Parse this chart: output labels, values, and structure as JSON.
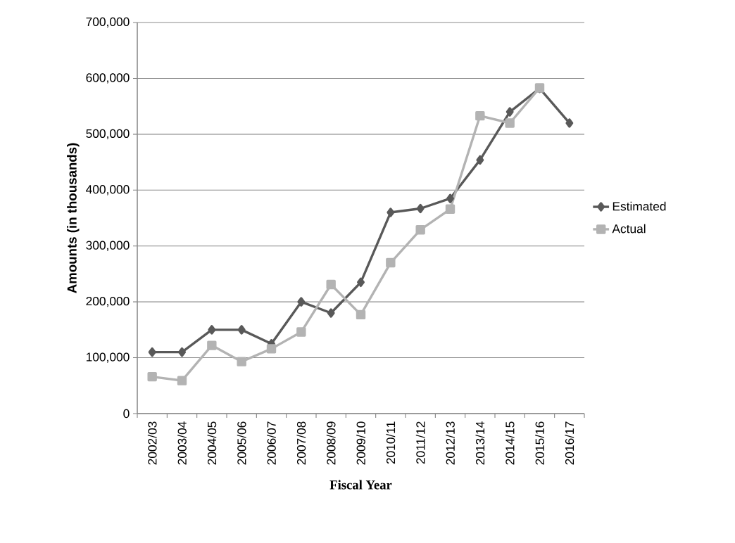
{
  "chart_data": {
    "type": "line",
    "xlabel": "Fiscal Year",
    "ylabel": "Amounts (in thousands)",
    "categories": [
      "2002/03",
      "2003/04",
      "2004/05",
      "2005/06",
      "2006/07",
      "2007/08",
      "2008/09",
      "2009/10",
      "2010/11",
      "2011/12",
      "2012/13",
      "2013/14",
      "2014/15",
      "2015/16",
      "2016/17"
    ],
    "series": [
      {
        "name": "Estimated",
        "color": "#595959",
        "marker": "diamond",
        "values": [
          110000,
          110000,
          150000,
          150000,
          125000,
          200000,
          180000,
          235000,
          360000,
          367000,
          385000,
          454000,
          540000,
          582000,
          520000
        ]
      },
      {
        "name": "Actual",
        "color": "#b3b3b3",
        "marker": "square",
        "values": [
          66000,
          59000,
          122000,
          93000,
          116000,
          146000,
          231000,
          177000,
          270000,
          329000,
          366000,
          533000,
          520000,
          583000,
          null
        ]
      }
    ],
    "ylim": [
      0,
      700000
    ],
    "yticks": [
      0,
      {
        "value": 100000,
        "label": "100,000"
      },
      {
        "value": 200000,
        "label": "200,000"
      },
      {
        "value": 300000,
        "label": "300,000"
      },
      {
        "value": 400000,
        "label": "400,000"
      },
      {
        "value": 500000,
        "label": "500,000"
      },
      {
        "value": 600000,
        "label": "600,000"
      },
      {
        "value": 700000,
        "label": "700,000"
      }
    ],
    "grid": "y",
    "legend": "right",
    "line_style": "solid"
  }
}
